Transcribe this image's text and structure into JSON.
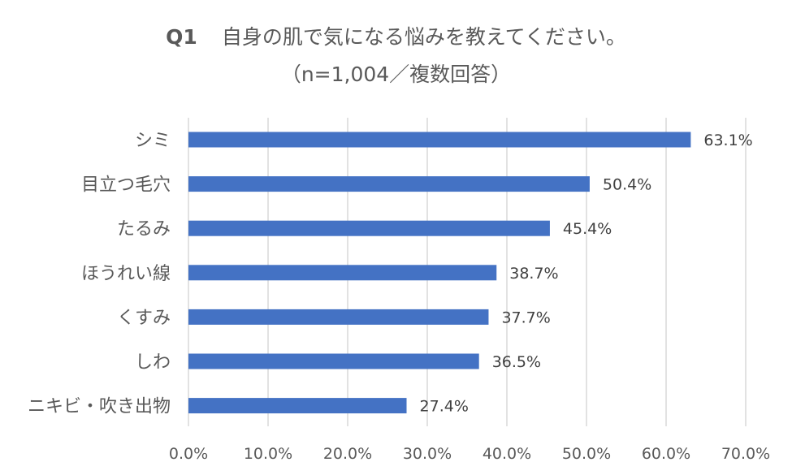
{
  "title": {
    "question_number": "Q1",
    "question_text": "自身の肌で気になる悩みを教えてください。",
    "subtitle": "（n=1,004／複数回答）"
  },
  "chart_data": {
    "type": "bar",
    "orientation": "horizontal",
    "categories": [
      "シミ",
      "目立つ毛穴",
      "たるみ",
      "ほうれい線",
      "くすみ",
      "しわ",
      "ニキビ・吹き出物"
    ],
    "values": [
      63.1,
      50.4,
      45.4,
      38.7,
      37.7,
      36.5,
      27.4
    ],
    "value_labels": [
      "63.1%",
      "50.4%",
      "45.4%",
      "38.7%",
      "37.7%",
      "36.5%",
      "27.4%"
    ],
    "xlim": [
      0,
      70
    ],
    "ticks": [
      0,
      10,
      20,
      30,
      40,
      50,
      60,
      70
    ],
    "tick_labels": [
      "0.0%",
      "10.0%",
      "20.0%",
      "30.0%",
      "40.0%",
      "50.0%",
      "60.0%",
      "70.0%"
    ],
    "grid": true,
    "bar_color": "#4472C4",
    "grid_color": "#D9D9D9"
  }
}
